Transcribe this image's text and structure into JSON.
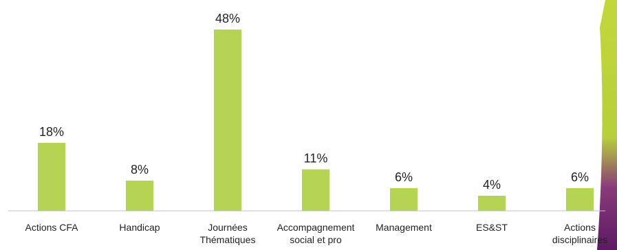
{
  "chart_data": {
    "type": "bar",
    "categories": [
      [
        "Actions CFA"
      ],
      [
        "Handicap"
      ],
      [
        "Journées",
        "Thématiques"
      ],
      [
        "Accompagnement",
        "social et pro"
      ],
      [
        "Management"
      ],
      [
        "ES&ST"
      ],
      [
        "Actions",
        "disciplinaires"
      ]
    ],
    "values": [
      18,
      8,
      48,
      11,
      6,
      4,
      6
    ],
    "value_labels": [
      "18%",
      "8%",
      "48%",
      "11%",
      "6%",
      "4%",
      "6%"
    ],
    "ylim": [
      0,
      48
    ],
    "grid": false,
    "legend": "none",
    "bar_color": "#b5d452",
    "decoration_colors": [
      "#c2d73a",
      "#6a1f6e"
    ]
  }
}
